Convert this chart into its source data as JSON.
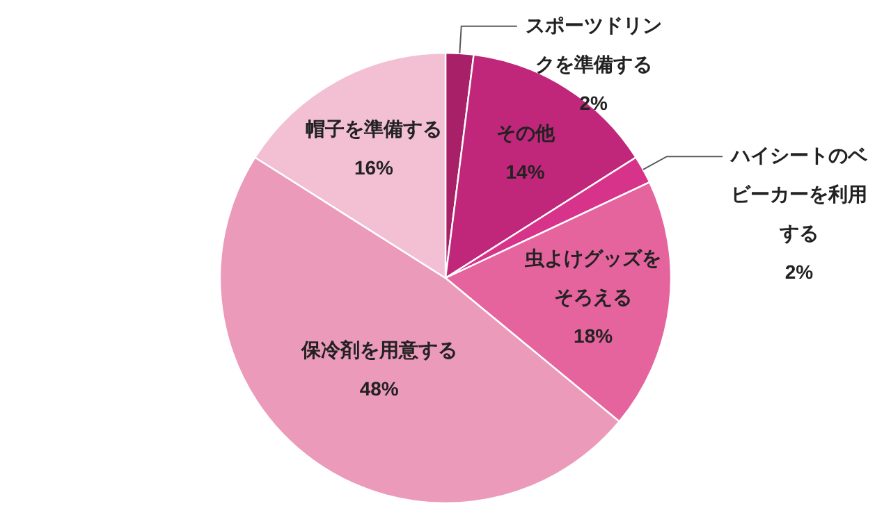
{
  "chart_data": {
    "type": "pie",
    "categories": [
      "スポーツドリンクを準備する",
      "その他",
      "ハイシートのベビーカーを利用する",
      "虫よけグッズをそろえる",
      "保冷剤を用意する",
      "帽子を準備する"
    ],
    "values": [
      2,
      14,
      2,
      18,
      48,
      16
    ],
    "colors": [
      "#a82068",
      "#c0277a",
      "#d8338a",
      "#e5649e",
      "#ec9aba",
      "#f2bfd3"
    ],
    "value_labels": [
      "2%",
      "14%",
      "2%",
      "18%",
      "48%",
      "16%"
    ]
  }
}
